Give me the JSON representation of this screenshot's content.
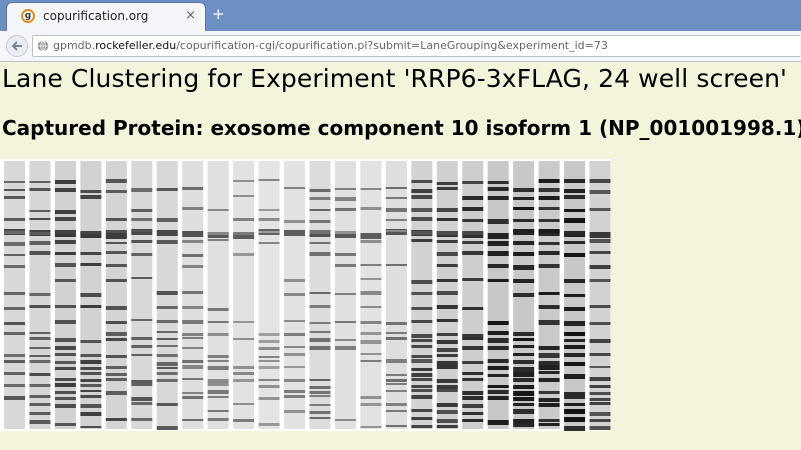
{
  "browser": {
    "tab_title": "copurification.org",
    "favicon_letter": "g",
    "close_symbol": "×",
    "new_tab_symbol": "+",
    "url_prefix": "gpmdb.",
    "url_domain": "rockefeller.edu",
    "url_path": "/copurification-cgi/copurification.pl?submit=LaneGrouping&experiment_id=73"
  },
  "page": {
    "title": "Lane Clustering for Experiment 'RRP6-3xFLAG, 24 well screen'",
    "subtitle": "Captured Protein: exosome component 10 isoform 1 (NP_001001998.1)"
  },
  "gel": {
    "lane_count": 24,
    "description_icon": "gel-lane-image"
  }
}
